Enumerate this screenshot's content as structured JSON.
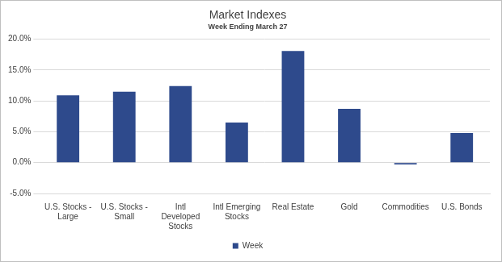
{
  "chart_data": {
    "type": "bar",
    "title": "Market Indexes",
    "subtitle": "Week Ending March 27",
    "categories": [
      "U.S. Stocks - Large",
      "U.S. Stocks - Small",
      "Intl Developed Stocks",
      "Intl Emerging Stocks",
      "Real Estate",
      "Gold",
      "Commodities",
      "U.S. Bonds"
    ],
    "series": [
      {
        "name": "Week",
        "color": "#2e4a8c",
        "values": [
          10.9,
          11.5,
          12.4,
          6.5,
          18.1,
          8.7,
          -0.3,
          4.8
        ]
      }
    ],
    "ylim": [
      -5,
      20
    ],
    "yticks": [
      {
        "value": -5,
        "label": "-5.0%"
      },
      {
        "value": 0,
        "label": "0.0%"
      },
      {
        "value": 5,
        "label": "5.0%"
      },
      {
        "value": 10,
        "label": "10.0%"
      },
      {
        "value": 15,
        "label": "15.0%"
      },
      {
        "value": 20,
        "label": "20.0%"
      }
    ],
    "grid": true,
    "legend": "bottom"
  }
}
